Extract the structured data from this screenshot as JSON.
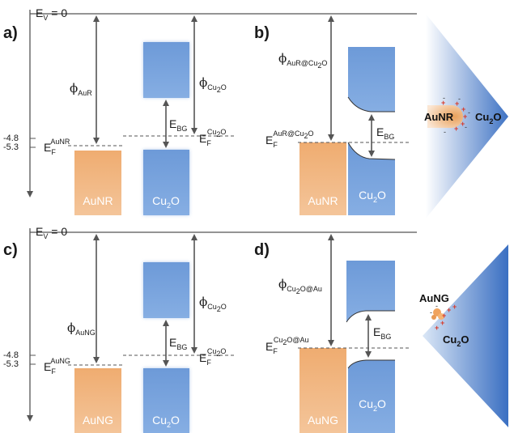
{
  "vacuum": {
    "symbol": "E",
    "sub": "V",
    "eq": " = 0"
  },
  "levels": {
    "upper": "-4.8",
    "lower": "-5.3"
  },
  "panels": {
    "a": {
      "letter": "a)",
      "phi_metal": "AuR",
      "phi_cu2o": "Cu",
      "phi_cu2o_tail": "O",
      "ebg": "BG",
      "ef_metal": "AuNR",
      "ef_cu2o": "Cu",
      "ef_cu2o_tail": "O",
      "box_metal": "AuNR",
      "box_cu2o_a": "Cu",
      "box_cu2o_b": "O"
    },
    "b": {
      "letter": "b)",
      "phi_sub_a": "AuR@Cu",
      "phi_sub_b": "O",
      "ef_sup_a": "AuR@Cu",
      "ef_sup_b": "O",
      "ebg": "BG",
      "box_metal": "AuNR",
      "box_cu2o_a": "Cu",
      "box_cu2o_b": "O"
    },
    "c": {
      "letter": "c)",
      "phi_metal": "AuNG",
      "phi_cu2o": "Cu",
      "phi_cu2o_tail": "O",
      "ebg": "BG",
      "ef_metal": "AuNG",
      "ef_cu2o": "Cu",
      "ef_cu2o_tail": "O",
      "box_metal": "AuNG",
      "box_cu2o_a": "Cu",
      "box_cu2o_b": "O"
    },
    "d": {
      "letter": "d)",
      "phi_sub_a": "Cu",
      "phi_sub_b": "O@Au",
      "ef_sup_a": "Cu",
      "ef_sup_b": "O@Au",
      "ebg": "BG",
      "box_metal": "AuNG",
      "box_cu2o_a": "Cu",
      "box_cu2o_b": "O"
    }
  },
  "illustrations": {
    "top": {
      "particle": "AuNR",
      "host_a": "Cu",
      "host_b": "O"
    },
    "bottom": {
      "particle": "AuNG",
      "host_a": "Cu",
      "host_b": "O"
    }
  },
  "symbols": {
    "phi": "ϕ",
    "E": "E",
    "two": "2"
  },
  "colors": {
    "metal": "#f0b27a",
    "cu2o": "#6f9bd9",
    "line": "#555555"
  }
}
